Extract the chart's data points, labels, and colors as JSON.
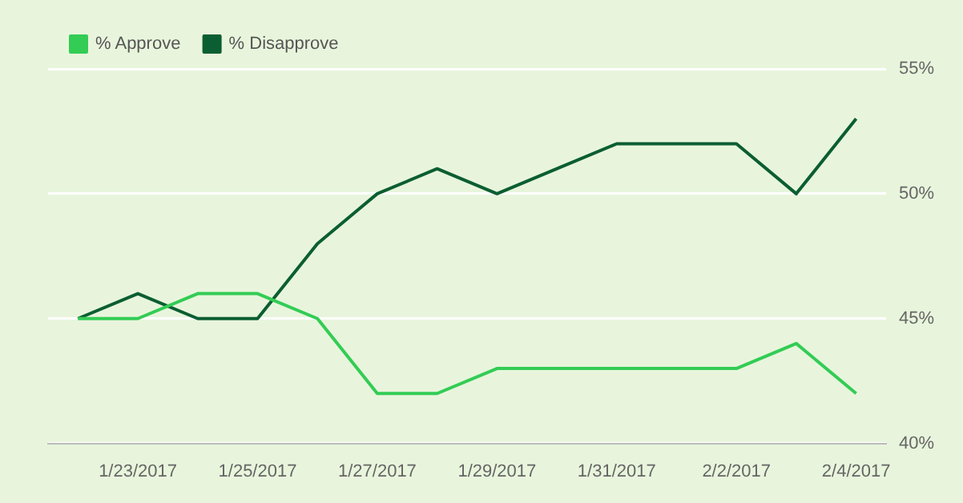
{
  "chart_data": {
    "type": "line",
    "categories": [
      null,
      "1/23/2017",
      null,
      "1/25/2017",
      null,
      "1/27/2017",
      null,
      "1/29/2017",
      null,
      "1/31/2017",
      null,
      "2/2/2017",
      null,
      "2/4/2017"
    ],
    "series": [
      {
        "name": "% Approve",
        "color": "#33cc55",
        "values": [
          45,
          45,
          46,
          46,
          45,
          42,
          42,
          43,
          43,
          43,
          43,
          43,
          44,
          42
        ]
      },
      {
        "name": "% Disapprove",
        "color": "#0b5e32",
        "values": [
          45,
          46,
          45,
          45,
          48,
          50,
          51,
          50,
          51,
          52,
          52,
          52,
          50,
          53
        ]
      }
    ],
    "ylim": [
      40,
      55
    ],
    "yticks": [
      {
        "value": 40,
        "label": "40%"
      },
      {
        "value": 45,
        "label": "45%"
      },
      {
        "value": 50,
        "label": "50%"
      },
      {
        "value": 55,
        "label": "55%"
      }
    ],
    "grid": "y",
    "legend": "top left",
    "marker": "none",
    "line_style": "solid"
  }
}
